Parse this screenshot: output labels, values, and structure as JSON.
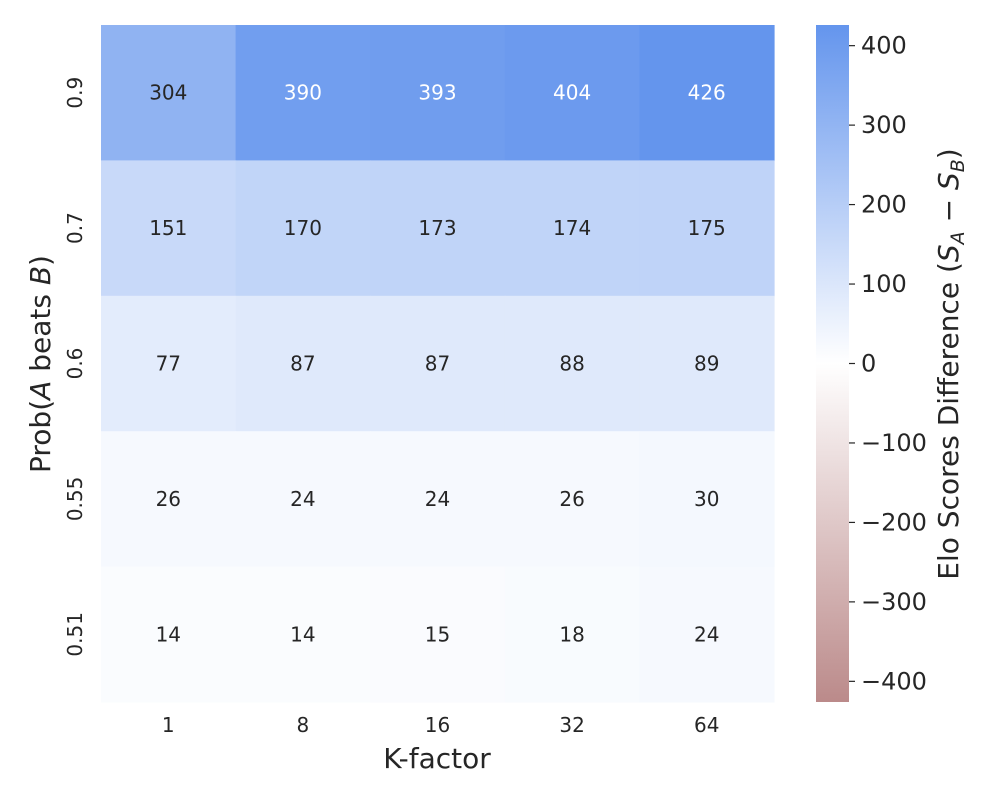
{
  "chart_data": {
    "type": "heatmap",
    "title": "",
    "xlabel": "K-factor",
    "ylabel": {
      "prefix": "Prob(",
      "var_a": "A",
      "middle": " beats ",
      "var_b": "B",
      "suffix": ")"
    },
    "x_categories": [
      "1",
      "8",
      "16",
      "32",
      "64"
    ],
    "y_categories": [
      "0.9",
      "0.7",
      "0.6",
      "0.55",
      "0.51"
    ],
    "values": [
      [
        304,
        390,
        393,
        404,
        426
      ],
      [
        151,
        170,
        173,
        174,
        175
      ],
      [
        77,
        87,
        87,
        88,
        89
      ],
      [
        26,
        24,
        24,
        26,
        30
      ],
      [
        14,
        14,
        15,
        18,
        24
      ]
    ],
    "colorbar": {
      "label": {
        "prefix": "Elo Scores Difference (",
        "s": "S",
        "sub_a": "A",
        "minus": " − ",
        "sub_b": "B",
        "suffix": ")"
      },
      "range": [
        -426,
        426
      ],
      "ticks": [
        400,
        300,
        200,
        100,
        0,
        -100,
        -200,
        -300,
        -400
      ],
      "tick_labels": [
        "400",
        "300",
        "200",
        "100",
        "0",
        "−100",
        "−200",
        "−300",
        "−400"
      ],
      "color_low": "#bb8a8a",
      "color_mid": "#ffffff",
      "color_high": "#6495ed"
    },
    "grid": false
  }
}
